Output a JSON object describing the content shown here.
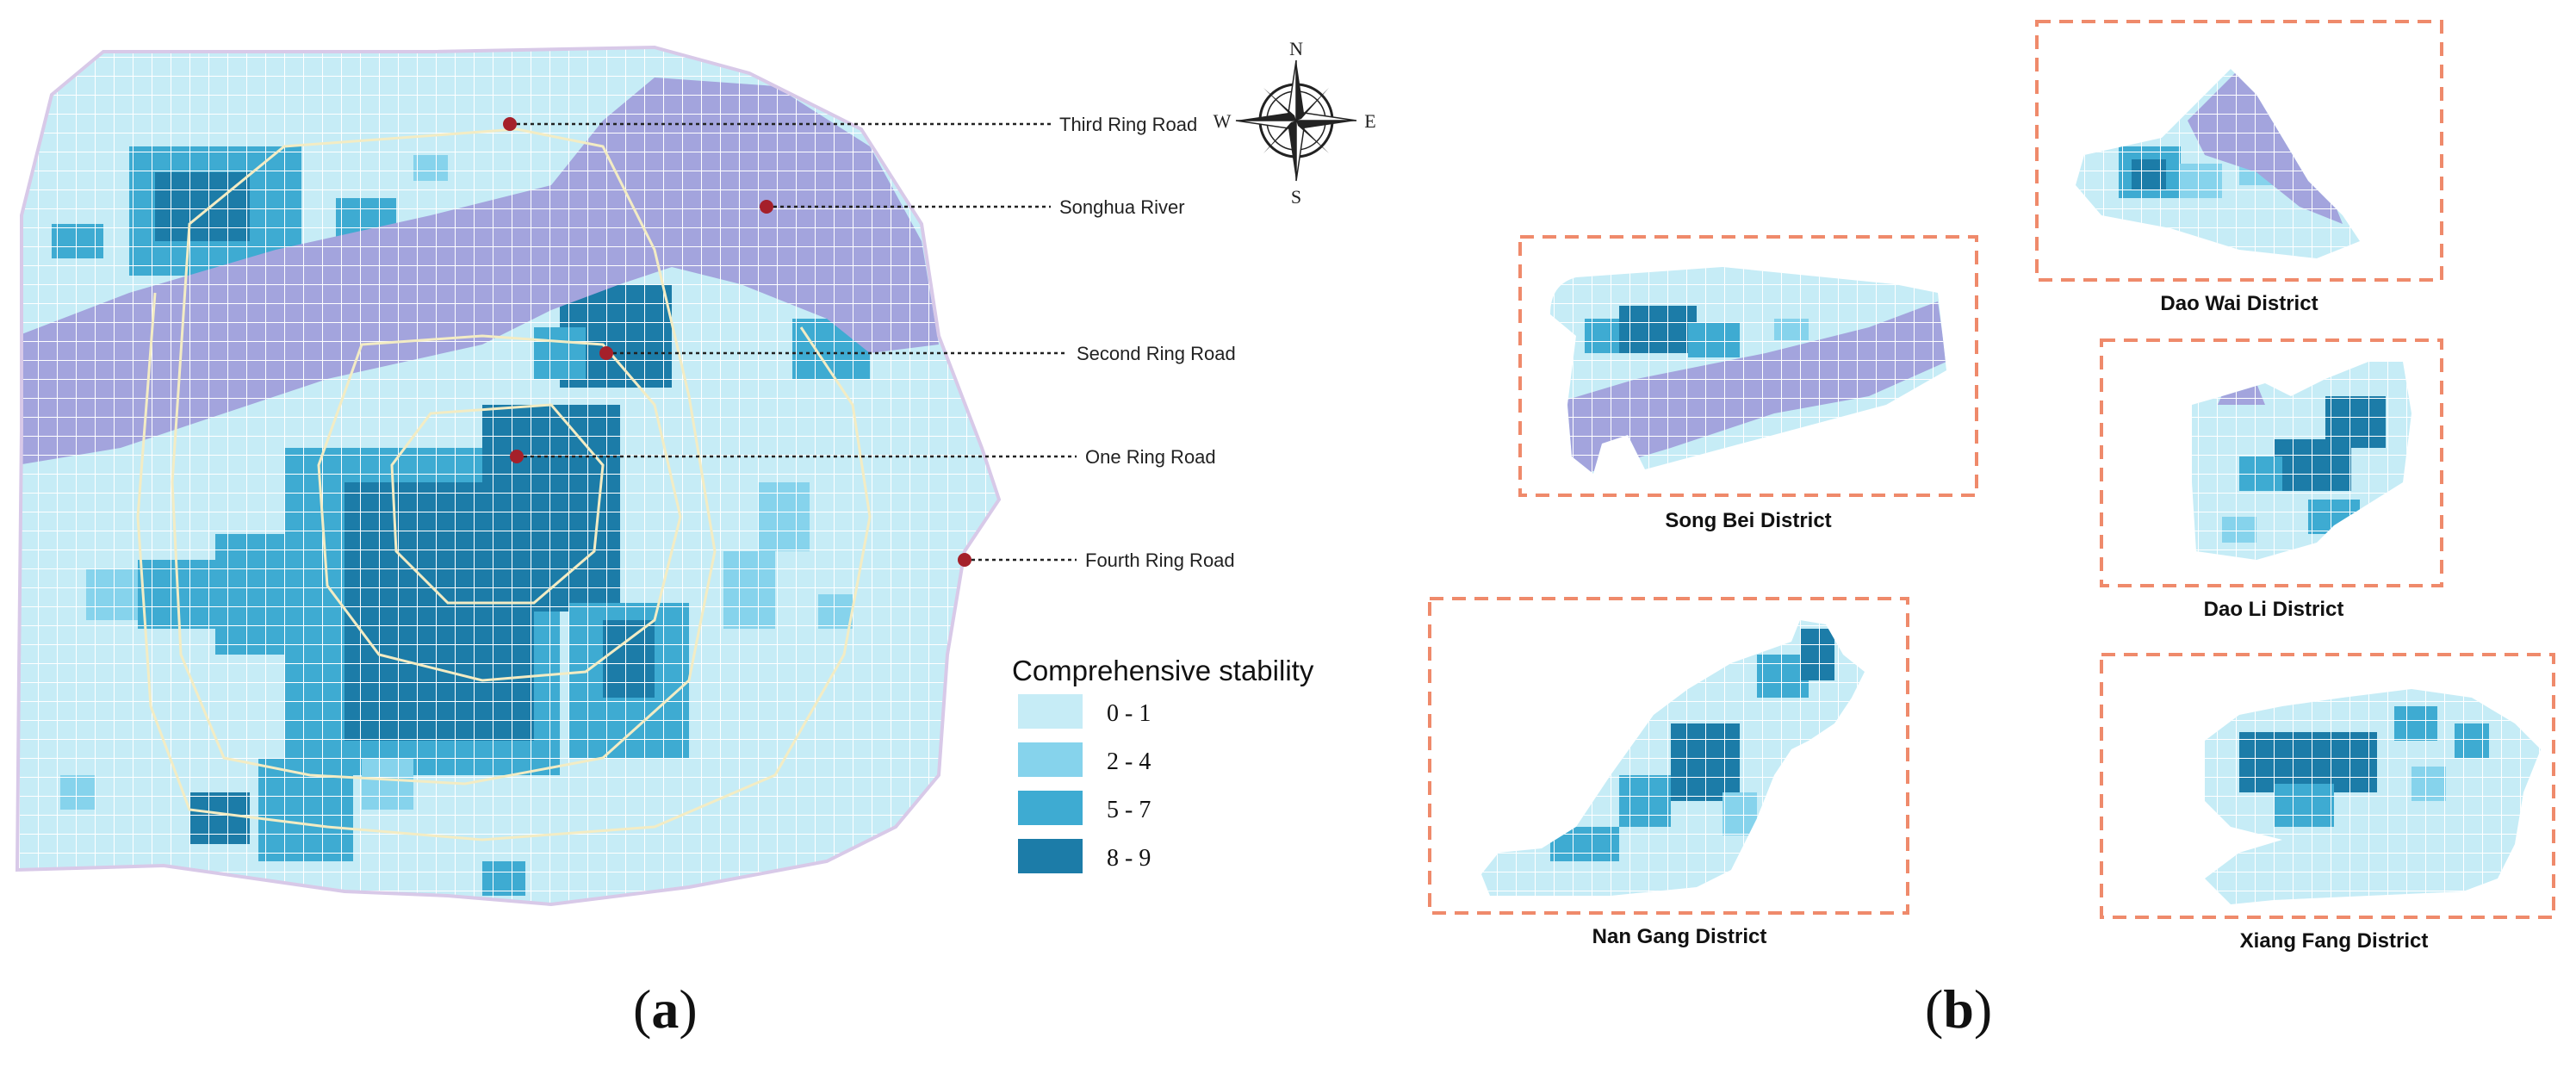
{
  "panel_a": {
    "label_open": "(",
    "label_letter": "a",
    "label_close": ")",
    "annotations": [
      "Third Ring Road",
      "Songhua River",
      "Second Ring Road",
      "One Ring Road",
      "Fourth Ring Road"
    ],
    "compass": {
      "n": "N",
      "s": "S",
      "e": "E",
      "w": "W"
    },
    "legend": {
      "title": "Comprehensive stability",
      "classes": [
        {
          "range": "0 - 1",
          "color": "#c6ecf6"
        },
        {
          "range": "2 - 4",
          "color": "#86d3ec"
        },
        {
          "range": "5 - 7",
          "color": "#3eabd2"
        },
        {
          "range": "8 - 9",
          "color": "#1c7ca8"
        }
      ]
    }
  },
  "panel_b": {
    "label_open": "(",
    "label_letter": "b",
    "label_close": ")",
    "districts": [
      "Dao Wai District",
      "Song Bei District",
      "Dao Li District",
      "Nan Gang District",
      "Xiang Fang District"
    ]
  },
  "colors": {
    "river": "#a3a4dd",
    "grid_line": "#ffffff",
    "ring_road": "#f3ecc4",
    "marker": "#a5202a",
    "frame": "#ef8a6b",
    "outline": "#d8c9e8"
  }
}
